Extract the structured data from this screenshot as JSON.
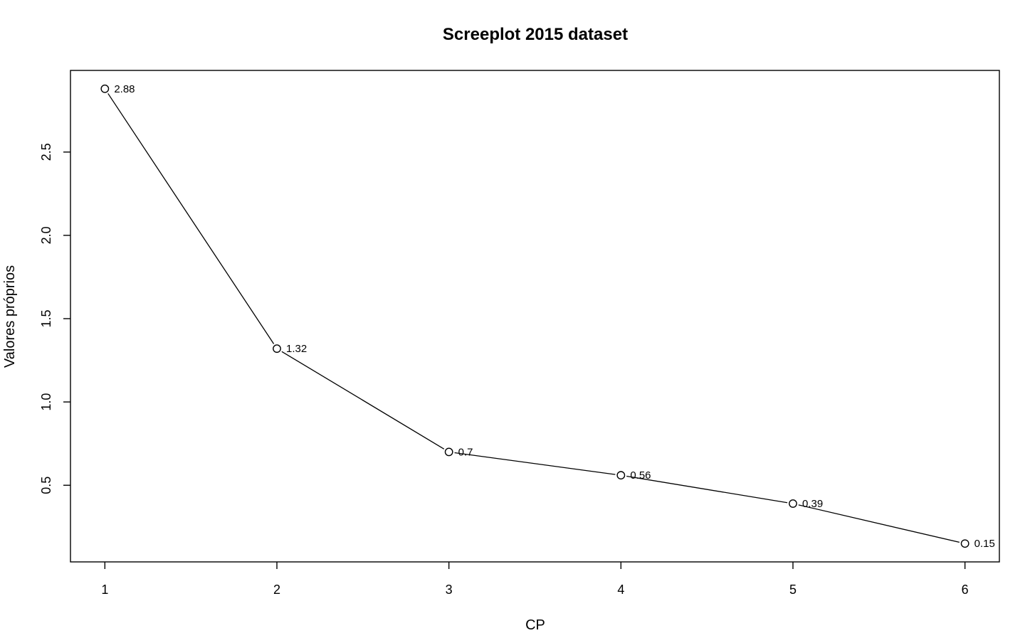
{
  "chart_data": {
    "type": "line",
    "title": "Screeplot 2015 dataset",
    "xlabel": "CP",
    "ylabel": "Valores próprios",
    "x": [
      1,
      2,
      3,
      4,
      5,
      6
    ],
    "values": [
      2.88,
      1.32,
      0.7,
      0.56,
      0.39,
      0.15
    ],
    "point_labels": [
      "2.88",
      "1.32",
      "0.7",
      "0.56",
      "0.39",
      "0.15"
    ],
    "xticks": [
      1,
      2,
      3,
      4,
      5,
      6
    ],
    "yticks": [
      0.5,
      1.0,
      1.5,
      2.0,
      2.5
    ],
    "ytick_labels": [
      "0.5",
      "1.0",
      "1.5",
      "2.0",
      "2.5"
    ],
    "xlim": [
      0.8,
      6.2
    ],
    "ylim": [
      0.04,
      2.99
    ],
    "grid": false,
    "legend": "none",
    "colors": {
      "line": "#000000",
      "marker_fill": "#ffffff",
      "marker_stroke": "#000000"
    }
  }
}
